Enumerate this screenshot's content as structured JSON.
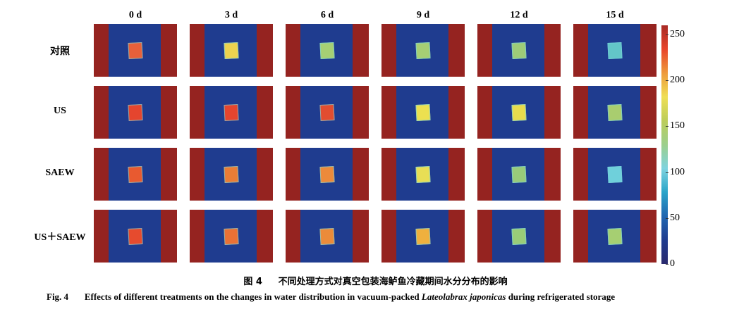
{
  "columns": [
    "0 d",
    "3 d",
    "6 d",
    "9 d",
    "12 d",
    "15 d"
  ],
  "rows": [
    {
      "label": "对照",
      "samples": [
        "#e8603a",
        "#ecd34f",
        "#a6cf74",
        "#a6cf74",
        "#9dcc78",
        "#63c5c8"
      ]
    },
    {
      "label": "US",
      "samples": [
        "#e5452e",
        "#e5452e",
        "#e24d30",
        "#ece050",
        "#e8dc4d",
        "#a9cd6f"
      ]
    },
    {
      "label": "SAEW",
      "samples": [
        "#e85a30",
        "#ea7d36",
        "#ec8a3b",
        "#e8de55",
        "#98ca7a",
        "#6fd0db"
      ]
    },
    {
      "label": "US＋SAEW",
      "samples": [
        "#e64b2e",
        "#ea7135",
        "#eb8b3a",
        "#efb03e",
        "#9acc78",
        "#a6cf72"
      ]
    }
  ],
  "colorbar": {
    "min": 0,
    "max": 260,
    "ticks": [
      0,
      50,
      100,
      150,
      200,
      250
    ],
    "stops": [
      "#2a2a6e",
      "#1f3c8f",
      "#2166b0",
      "#29a4c9",
      "#7fd3df",
      "#9ccf8c",
      "#bccd5a",
      "#efdf55",
      "#ee9a3c",
      "#e8452c",
      "#a82a25"
    ]
  },
  "caption": {
    "cn_label": "图 4",
    "cn_text": "不同处理方式对真空包装海鲈鱼冷藏期间水分分布的影响",
    "en_label": "Fig. 4",
    "en_text_a": "Effects of different treatments on the changes in water distribution in vacuum-packed ",
    "en_species": "Lateolabrax japonicas",
    "en_text_b": " during refrigerated storage"
  }
}
